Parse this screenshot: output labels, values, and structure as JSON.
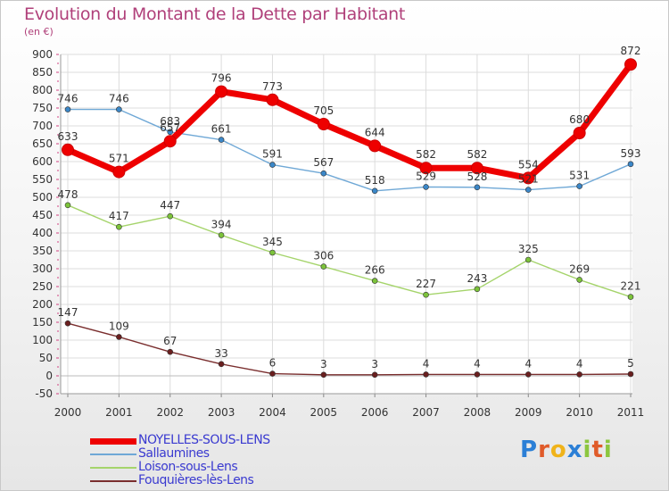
{
  "header": {
    "title": "Evolution du Montant de la Dette par Habitant",
    "unit": "(en €)"
  },
  "legend": {
    "items": [
      "NOYELLES-SOUS-LENS",
      "Sallaumines",
      "Loison-sous-Lens",
      "Fouquières-lès-Lens"
    ]
  },
  "logo": {
    "text": "Proxiti",
    "letters": [
      "P",
      "r",
      "o",
      "x",
      "i",
      "t",
      "i"
    ],
    "colors": [
      "#2b7fd6",
      "#e05b2a",
      "#f0b31a",
      "#2b7fd6",
      "#8cc63f",
      "#e05b2a",
      "#8cc63f"
    ]
  },
  "chart_data": {
    "type": "line",
    "title": "Evolution du Montant de la Dette par Habitant",
    "ylabel": "(en €)",
    "xlabel": "",
    "categories": [
      "2000",
      "2001",
      "2002",
      "2003",
      "2004",
      "2005",
      "2006",
      "2007",
      "2008",
      "2009",
      "2010",
      "2011"
    ],
    "ylim": [
      -50,
      900
    ],
    "yticks": [
      -50,
      0,
      50,
      100,
      150,
      200,
      250,
      300,
      350,
      400,
      450,
      500,
      550,
      600,
      650,
      700,
      750,
      800,
      850,
      900
    ],
    "grid": true,
    "legend_position": "bottom-left",
    "series": [
      {
        "name": "Sallaumines",
        "color": "#6fa8d6",
        "marker": "#3b87c8",
        "values": [
          746,
          746,
          683,
          661,
          591,
          567,
          518,
          529,
          528,
          521,
          531,
          593
        ],
        "labels": [
          "746",
          "746",
          "683",
          "661",
          "591",
          "567",
          "518",
          "529",
          "528",
          "521",
          "531",
          "593"
        ]
      },
      {
        "name": "Loison-sous-Lens",
        "color": "#a5d46b",
        "marker": "#7cc33a",
        "values": [
          478,
          417,
          447,
          394,
          345,
          306,
          266,
          227,
          243,
          325,
          269,
          221
        ],
        "labels": [
          "478",
          "417",
          "447",
          "394",
          "345",
          "306",
          "266",
          "227",
          "243",
          "325",
          "269",
          "221"
        ]
      },
      {
        "name": "Fouquières-lès-Lens",
        "color": "#7a2e2e",
        "marker": "#6a1f1f",
        "values": [
          147,
          109,
          67,
          33,
          6,
          3,
          3,
          4,
          4,
          4,
          4,
          5
        ],
        "labels": [
          "147",
          "109",
          "67",
          "33",
          "6",
          "3",
          "3",
          "4",
          "4",
          "4",
          "4",
          "5"
        ]
      },
      {
        "name": "NOYELLES-SOUS-LENS",
        "color": "#ee0000",
        "marker": "#ee0000",
        "values": [
          633,
          571,
          657,
          796,
          773,
          705,
          644,
          582,
          582,
          554,
          680,
          872
        ],
        "labels": [
          "633",
          "571",
          "657",
          "796",
          "773",
          "705",
          "644",
          "582",
          "582",
          "554",
          "680",
          "872"
        ]
      }
    ]
  }
}
